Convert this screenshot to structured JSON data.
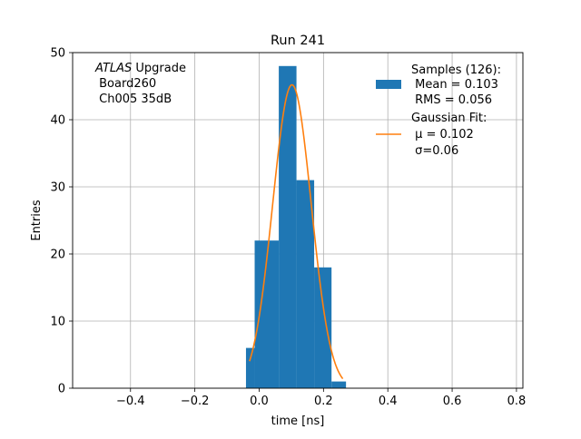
{
  "chart_data": {
    "type": "bar",
    "title": "Run 241",
    "xlabel": "time [ns]",
    "ylabel": "Entries",
    "xlim": [
      -0.58,
      0.82
    ],
    "ylim": [
      0,
      50
    ],
    "x_ticks": [
      -0.4,
      -0.2,
      0.0,
      0.2,
      0.4,
      0.6,
      0.8
    ],
    "x_tick_labels": [
      "−0.4",
      "−0.2",
      "0.0",
      "0.2",
      "0.4",
      "0.6",
      "0.8"
    ],
    "y_ticks": [
      0,
      10,
      20,
      30,
      40,
      50
    ],
    "y_tick_labels": [
      "0",
      "10",
      "20",
      "30",
      "40",
      "50"
    ],
    "grid": true,
    "histogram": {
      "name": "Samples (126):",
      "color": "#1f77b4",
      "bins": [
        {
          "x0": -0.041,
          "x1": -0.014,
          "count": 6
        },
        {
          "x0": -0.014,
          "x1": 0.061,
          "count": 22
        },
        {
          "x0": 0.061,
          "x1": 0.116,
          "count": 48
        },
        {
          "x0": 0.116,
          "x1": 0.171,
          "count": 31
        },
        {
          "x0": 0.171,
          "x1": 0.225,
          "count": 18
        },
        {
          "x0": 0.225,
          "x1": 0.27,
          "count": 1
        }
      ]
    },
    "fit": {
      "name": "Gaussian Fit:",
      "color": "#ff7f0e",
      "mu": 0.102,
      "sigma": 0.06,
      "amplitude": 45.2,
      "x_range": [
        -0.03,
        0.26
      ]
    },
    "legend": {
      "position": "top-right",
      "entries": [
        {
          "lines": [
            "Samples (126):",
            " Mean = 0.103",
            " RMS = 0.056"
          ]
        },
        {
          "lines": [
            "Gaussian Fit:",
            " μ = 0.102",
            " σ=0.06"
          ]
        }
      ]
    },
    "annotation": {
      "position": "top-left",
      "italic": "ATLAS",
      "rest": " Upgrade",
      "lines": [
        " Board260",
        " Ch005 35dB"
      ]
    }
  }
}
